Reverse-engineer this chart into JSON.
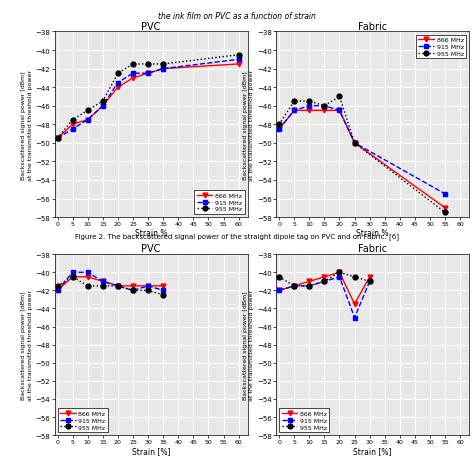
{
  "top_titles": [
    "PVC",
    "Fabric"
  ],
  "bottom_titles": [
    "PVC",
    "Fabric"
  ],
  "caption": "Figure 2. The backscattered signal power of the straight dipole tag on PVC and on Fabric. [6]",
  "header_text_top": "the ink film on PVC as a function of strain",
  "ylabel": "Backscattered signal power [dBm]\nat the transmitted threshold power",
  "xlabel_top": "Strain %",
  "xlabel_bottom": "Strain [%]",
  "ylim": [
    -58,
    -38
  ],
  "yticks": [
    -58,
    -56,
    -54,
    -52,
    -50,
    -48,
    -46,
    -44,
    -42,
    -40,
    -38
  ],
  "xticks_top": [
    0,
    5,
    10,
    15,
    20,
    25,
    30,
    35,
    40,
    45,
    50,
    55,
    60
  ],
  "xticks_bottom": [
    0,
    5,
    10,
    15,
    20,
    25,
    30,
    35,
    40,
    45,
    50,
    55,
    60
  ],
  "legend_labels": [
    "866 MHz",
    "915 MHz",
    "955 MHz"
  ],
  "top_pvc": {
    "x866": [
      0,
      5,
      10,
      15,
      20,
      25,
      30,
      35,
      60
    ],
    "y866": [
      -49.5,
      -48.0,
      -47.5,
      -46.0,
      -44.0,
      -43.0,
      -42.5,
      -42.0,
      -41.5
    ],
    "x915": [
      0,
      5,
      10,
      15,
      20,
      25,
      30,
      35,
      60
    ],
    "y915": [
      -49.5,
      -48.5,
      -47.5,
      -46.0,
      -43.5,
      -42.5,
      -42.5,
      -42.0,
      -41.0
    ],
    "x955": [
      0,
      5,
      10,
      15,
      20,
      25,
      30,
      35,
      60
    ],
    "y955": [
      -49.5,
      -47.5,
      -46.5,
      -45.5,
      -42.5,
      -41.5,
      -41.5,
      -41.5,
      -40.5
    ]
  },
  "top_fabric": {
    "x866": [
      0,
      5,
      10,
      15,
      20,
      25,
      55
    ],
    "y866": [
      -48.5,
      -46.5,
      -46.5,
      -46.5,
      -46.5,
      -50.0,
      -57.0
    ],
    "x915": [
      0,
      5,
      10,
      15,
      20,
      25,
      55
    ],
    "y915": [
      -48.5,
      -46.5,
      -46.0,
      -46.0,
      -46.5,
      -50.0,
      -55.5
    ],
    "x955": [
      0,
      5,
      10,
      15,
      20,
      25,
      55
    ],
    "y955": [
      -48.0,
      -45.5,
      -45.5,
      -46.0,
      -45.0,
      -50.0,
      -57.5
    ]
  },
  "bottom_pvc": {
    "x866": [
      0,
      5,
      10,
      15,
      20,
      25,
      30,
      35
    ],
    "y866": [
      -42.0,
      -40.5,
      -40.5,
      -41.0,
      -41.5,
      -41.5,
      -41.5,
      -41.5
    ],
    "x915": [
      0,
      5,
      10,
      15,
      20,
      25,
      30,
      35
    ],
    "y915": [
      -42.0,
      -40.0,
      -40.0,
      -41.0,
      -41.5,
      -42.0,
      -41.5,
      -42.0
    ],
    "x955": [
      0,
      5,
      10,
      15,
      20,
      25,
      30,
      35
    ],
    "y955": [
      -41.5,
      -40.5,
      -41.5,
      -41.5,
      -41.5,
      -42.0,
      -42.0,
      -42.5
    ]
  },
  "bottom_fabric": {
    "x866": [
      0,
      5,
      10,
      15,
      20,
      25,
      30
    ],
    "y866": [
      -42.0,
      -41.5,
      -41.0,
      -40.5,
      -40.0,
      -43.5,
      -40.5
    ],
    "x915": [
      0,
      5,
      10,
      15,
      20,
      25,
      30
    ],
    "y915": [
      -42.0,
      -41.5,
      -41.5,
      -41.0,
      -40.5,
      -45.0,
      -41.0
    ],
    "x955": [
      0,
      5,
      10,
      15,
      20,
      25,
      30
    ],
    "y955": [
      -40.5,
      -41.5,
      -41.5,
      -41.0,
      -40.0,
      -40.5,
      -41.0
    ]
  },
  "colors": {
    "866": "#ff0000",
    "915": "#0000ff",
    "955": "#000000"
  },
  "bg_color": "#e8e8e8",
  "grid_color": "white",
  "figure_bg": "white"
}
